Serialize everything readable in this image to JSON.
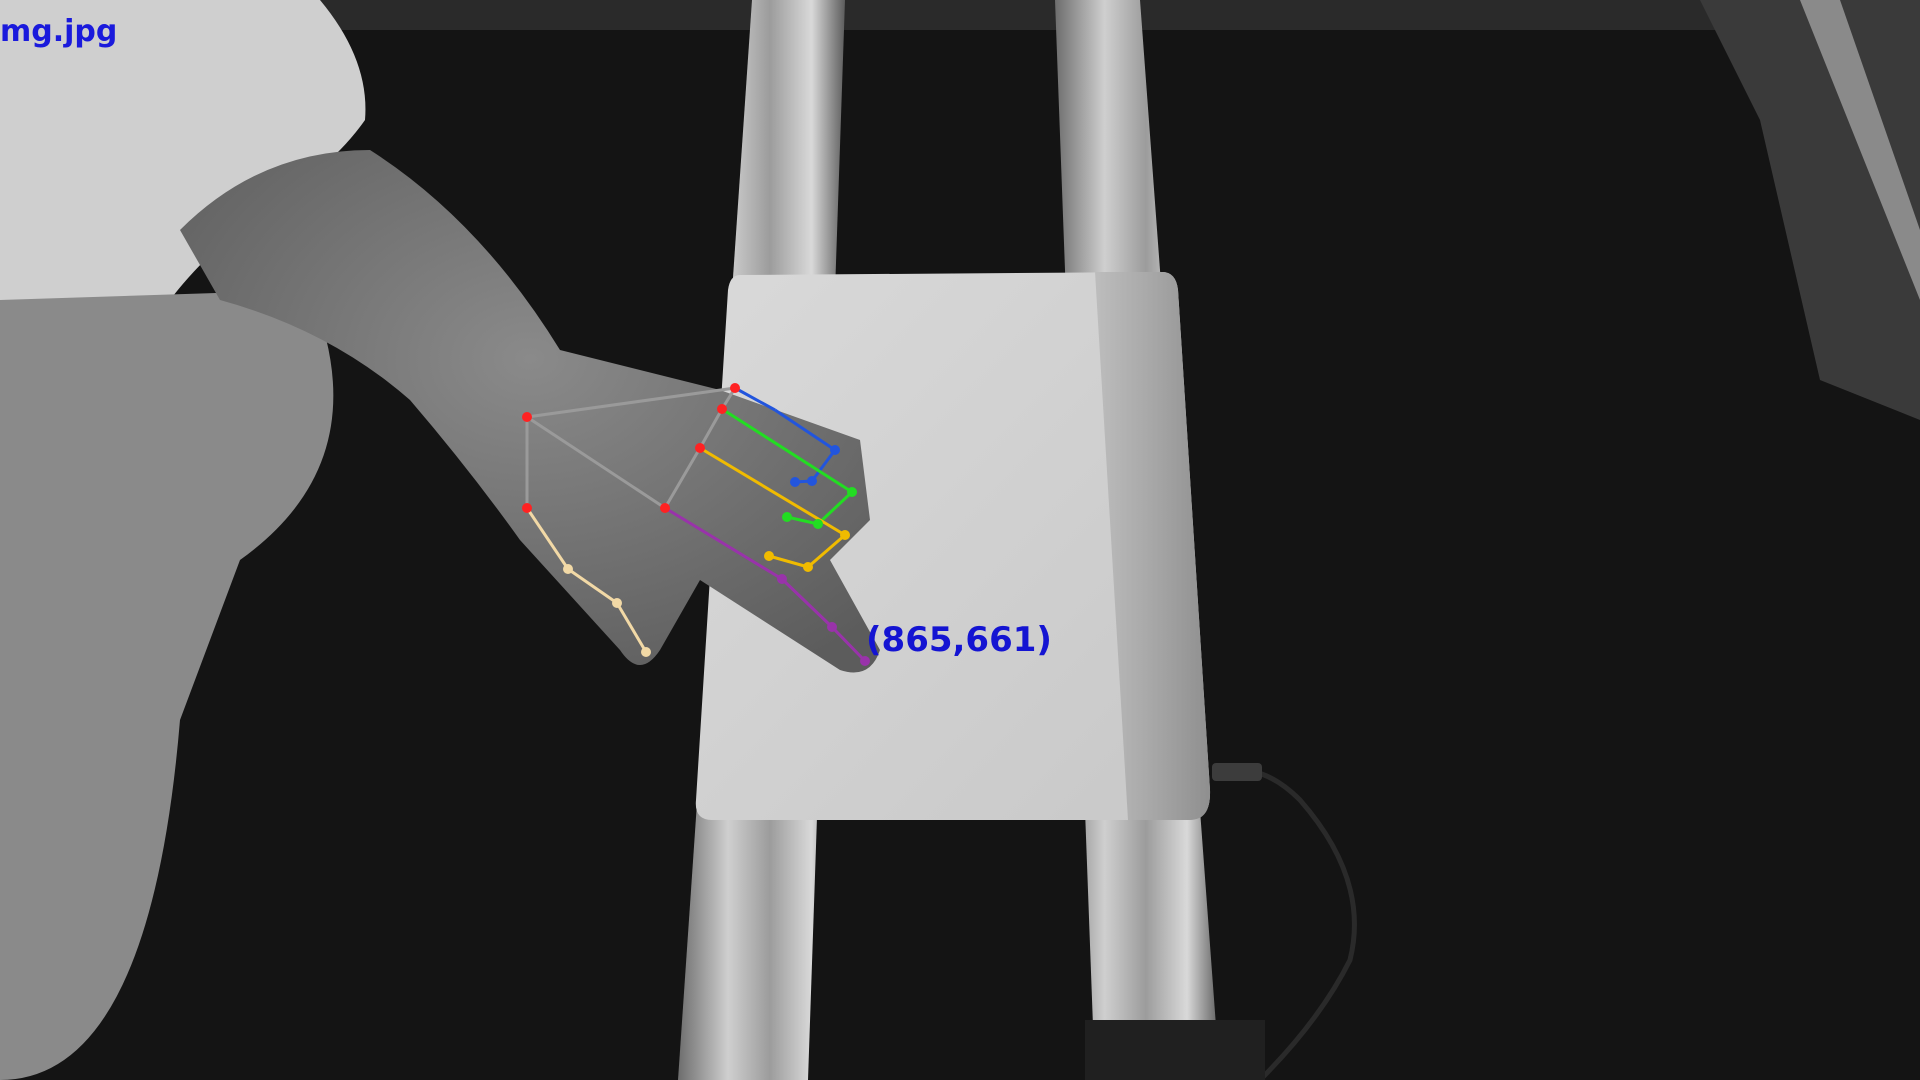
{
  "overlay": {
    "filename_label": "mg.jpg",
    "fingertip_coordinate": "(865,661)"
  },
  "hand_landmarks": {
    "finger_colors": {
      "palm": "#9a9a9a",
      "thumb": "#f2d9a6",
      "index": "#2255dd",
      "middle": "#22dd22",
      "ring": "#f0bb00",
      "pinky": "#9933aa",
      "joint": "#ff2222"
    }
  },
  "scene": {
    "subject": "grayscale top-down view of a hand touching a white tablet on aluminum rails"
  }
}
